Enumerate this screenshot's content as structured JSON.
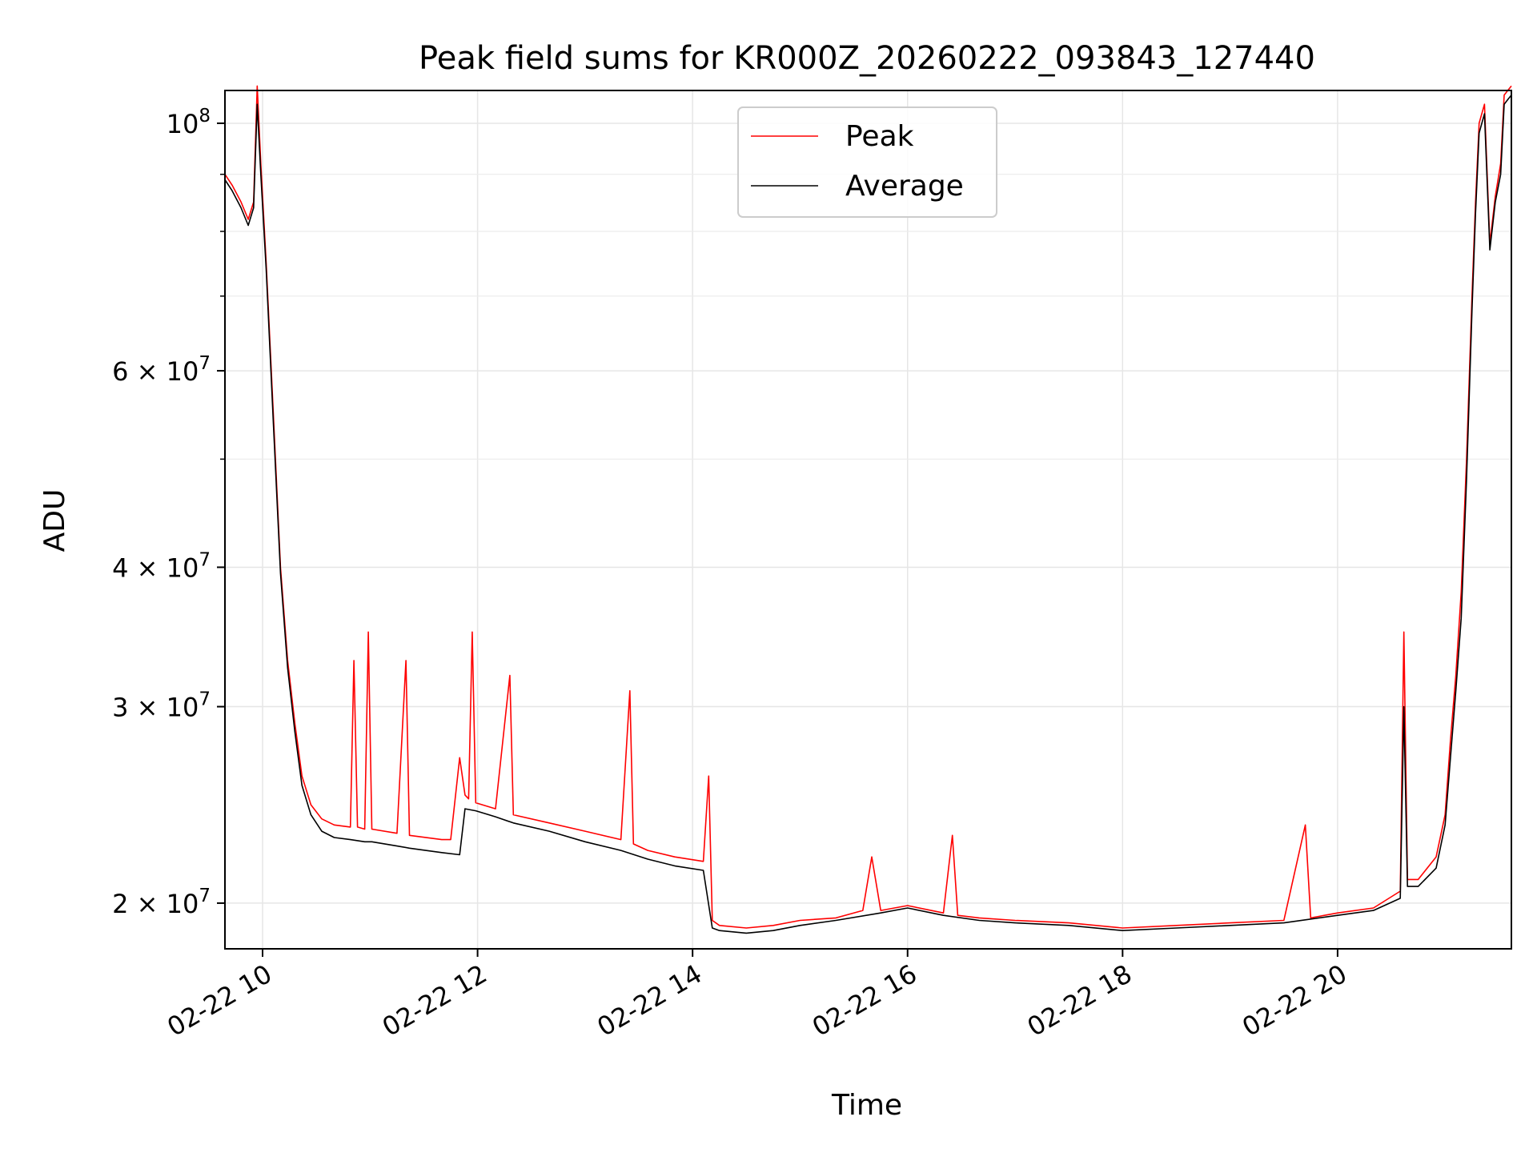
{
  "chart_data": {
    "type": "line",
    "title": "Peak field sums for KR000Z_20260222_093843_127440",
    "xlabel": "Time",
    "ylabel": "ADU",
    "yscale": "log",
    "xlim": [
      "2026-02-22 09:39",
      "2026-02-22 21:37"
    ],
    "ylim": [
      18200000,
      107000000
    ],
    "grid": true,
    "legend_position": "top-center",
    "x_ticks": [
      {
        "label": "02-22 10",
        "x": "2026-02-22 10:00"
      },
      {
        "label": "02-22 12",
        "x": "2026-02-22 12:00"
      },
      {
        "label": "02-22 14",
        "x": "2026-02-22 14:00"
      },
      {
        "label": "02-22 16",
        "x": "2026-02-22 16:00"
      },
      {
        "label": "02-22 18",
        "x": "2026-02-22 18:00"
      },
      {
        "label": "02-22 20",
        "x": "2026-02-22 20:00"
      }
    ],
    "y_ticks": [
      {
        "label": "2 × 10^7",
        "mantissa": "2 × 10",
        "exp": "7",
        "value": 20000000
      },
      {
        "label": "3 × 10^7",
        "mantissa": "3 × 10",
        "exp": "7",
        "value": 30000000
      },
      {
        "label": "4 × 10^7",
        "mantissa": "4 × 10",
        "exp": "7",
        "value": 40000000
      },
      {
        "label": "6 × 10^7",
        "mantissa": "6 × 10",
        "exp": "7",
        "value": 60000000
      },
      {
        "label": "10^8",
        "mantissa": "10",
        "exp": "8",
        "value": 100000000
      }
    ],
    "y_minor_ticks": [
      50000000,
      70000000,
      80000000,
      90000000
    ],
    "series": [
      {
        "name": "Peak",
        "color": "#ff0000",
        "x": [
          "2026-02-22 09:39",
          "2026-02-22 09:43",
          "2026-02-22 09:48",
          "2026-02-22 09:52",
          "2026-02-22 09:55",
          "2026-02-22 09:57",
          "2026-02-22 09:59",
          "2026-02-22 10:02",
          "2026-02-22 10:06",
          "2026-02-22 10:10",
          "2026-02-22 10:14",
          "2026-02-22 10:18",
          "2026-02-22 10:22",
          "2026-02-22 10:27",
          "2026-02-22 10:33",
          "2026-02-22 10:40",
          "2026-02-22 10:49",
          "2026-02-22 10:51",
          "2026-02-22 10:53",
          "2026-02-22 10:57",
          "2026-02-22 10:59",
          "2026-02-22 11:01",
          "2026-02-22 11:15",
          "2026-02-22 11:20",
          "2026-02-22 11:22",
          "2026-02-22 11:40",
          "2026-02-22 11:45",
          "2026-02-22 11:50",
          "2026-02-22 11:53",
          "2026-02-22 11:55",
          "2026-02-22 11:57",
          "2026-02-22 11:59",
          "2026-02-22 12:10",
          "2026-02-22 12:18",
          "2026-02-22 12:20",
          "2026-02-22 12:40",
          "2026-02-22 13:00",
          "2026-02-22 13:20",
          "2026-02-22 13:25",
          "2026-02-22 13:27",
          "2026-02-22 13:35",
          "2026-02-22 13:50",
          "2026-02-22 14:06",
          "2026-02-22 14:09",
          "2026-02-22 14:11",
          "2026-02-22 14:15",
          "2026-02-22 14:30",
          "2026-02-22 14:45",
          "2026-02-22 15:00",
          "2026-02-22 15:20",
          "2026-02-22 15:35",
          "2026-02-22 15:40",
          "2026-02-22 15:45",
          "2026-02-22 16:00",
          "2026-02-22 16:20",
          "2026-02-22 16:25",
          "2026-02-22 16:28",
          "2026-02-22 16:40",
          "2026-02-22 17:00",
          "2026-02-22 17:30",
          "2026-02-22 18:00",
          "2026-02-22 18:30",
          "2026-02-22 19:00",
          "2026-02-22 19:30",
          "2026-02-22 19:42",
          "2026-02-22 19:45",
          "2026-02-22 20:00",
          "2026-02-22 20:20",
          "2026-02-22 20:35",
          "2026-02-22 20:37",
          "2026-02-22 20:39",
          "2026-02-22 20:45",
          "2026-02-22 20:55",
          "2026-02-22 21:00",
          "2026-02-22 21:03",
          "2026-02-22 21:06",
          "2026-02-22 21:09",
          "2026-02-22 21:12",
          "2026-02-22 21:15",
          "2026-02-22 21:17",
          "2026-02-22 21:19",
          "2026-02-22 21:22",
          "2026-02-22 21:25",
          "2026-02-22 21:28",
          "2026-02-22 21:31",
          "2026-02-22 21:33",
          "2026-02-22 21:35",
          "2026-02-22 21:37"
        ],
        "values": [
          90000000,
          88000000,
          85000000,
          82000000,
          85000000,
          108000000,
          92000000,
          75000000,
          55000000,
          40000000,
          33000000,
          29000000,
          26000000,
          24500000,
          23800000,
          23500000,
          23400000,
          33000000,
          23400000,
          23300000,
          35000000,
          23300000,
          23100000,
          33000000,
          23000000,
          22800000,
          22800000,
          27000000,
          25000000,
          24800000,
          35000000,
          24600000,
          24300000,
          32000000,
          24000000,
          23600000,
          23200000,
          22800000,
          31000000,
          22600000,
          22300000,
          22000000,
          21800000,
          26000000,
          19300000,
          19100000,
          19000000,
          19100000,
          19300000,
          19400000,
          19700000,
          22000000,
          19700000,
          19900000,
          19600000,
          23000000,
          19500000,
          19400000,
          19300000,
          19200000,
          19000000,
          19100000,
          19200000,
          19300000,
          23500000,
          19400000,
          19600000,
          19800000,
          20500000,
          35000000,
          21000000,
          21000000,
          22000000,
          24000000,
          28000000,
          32000000,
          38000000,
          50000000,
          70000000,
          85000000,
          100000000,
          104000000,
          78000000,
          86000000,
          92000000,
          106000000,
          107000000,
          108000000
        ]
      },
      {
        "name": "Average",
        "color": "#000000",
        "x": [
          "2026-02-22 09:39",
          "2026-02-22 09:43",
          "2026-02-22 09:48",
          "2026-02-22 09:52",
          "2026-02-22 09:55",
          "2026-02-22 09:57",
          "2026-02-22 09:59",
          "2026-02-22 10:02",
          "2026-02-22 10:06",
          "2026-02-22 10:10",
          "2026-02-22 10:14",
          "2026-02-22 10:18",
          "2026-02-22 10:22",
          "2026-02-22 10:27",
          "2026-02-22 10:33",
          "2026-02-22 10:40",
          "2026-02-22 10:49",
          "2026-02-22 10:57",
          "2026-02-22 11:01",
          "2026-02-22 11:15",
          "2026-02-22 11:22",
          "2026-02-22 11:40",
          "2026-02-22 11:50",
          "2026-02-22 11:53",
          "2026-02-22 11:59",
          "2026-02-22 12:10",
          "2026-02-22 12:20",
          "2026-02-22 12:40",
          "2026-02-22 13:00",
          "2026-02-22 13:20",
          "2026-02-22 13:35",
          "2026-02-22 13:50",
          "2026-02-22 14:06",
          "2026-02-22 14:11",
          "2026-02-22 14:15",
          "2026-02-22 14:30",
          "2026-02-22 14:45",
          "2026-02-22 15:00",
          "2026-02-22 15:20",
          "2026-02-22 15:45",
          "2026-02-22 16:00",
          "2026-02-22 16:20",
          "2026-02-22 16:40",
          "2026-02-22 17:00",
          "2026-02-22 17:30",
          "2026-02-22 18:00",
          "2026-02-22 18:30",
          "2026-02-22 19:00",
          "2026-02-22 19:30",
          "2026-02-22 20:00",
          "2026-02-22 20:20",
          "2026-02-22 20:35",
          "2026-02-22 20:37",
          "2026-02-22 20:39",
          "2026-02-22 20:45",
          "2026-02-22 20:55",
          "2026-02-22 21:00",
          "2026-02-22 21:03",
          "2026-02-22 21:06",
          "2026-02-22 21:09",
          "2026-02-22 21:12",
          "2026-02-22 21:15",
          "2026-02-22 21:17",
          "2026-02-22 21:19",
          "2026-02-22 21:22",
          "2026-02-22 21:25",
          "2026-02-22 21:28",
          "2026-02-22 21:31",
          "2026-02-22 21:33",
          "2026-02-22 21:35",
          "2026-02-22 21:37"
        ],
        "values": [
          89000000,
          87000000,
          84000000,
          81000000,
          84000000,
          104000000,
          90000000,
          74000000,
          54000000,
          39500000,
          32500000,
          28500000,
          25500000,
          24000000,
          23200000,
          22900000,
          22800000,
          22700000,
          22700000,
          22500000,
          22400000,
          22200000,
          22100000,
          24300000,
          24200000,
          23900000,
          23600000,
          23200000,
          22700000,
          22300000,
          21900000,
          21600000,
          21400000,
          19000000,
          18900000,
          18800000,
          18900000,
          19100000,
          19300000,
          19600000,
          19800000,
          19500000,
          19300000,
          19200000,
          19100000,
          18900000,
          19000000,
          19100000,
          19200000,
          19500000,
          19700000,
          20200000,
          30000000,
          20700000,
          20700000,
          21500000,
          23500000,
          27000000,
          31000000,
          36000000,
          48000000,
          68000000,
          83000000,
          98000000,
          102000000,
          77000000,
          85000000,
          90000000,
          104000000,
          105000000,
          106000000
        ]
      }
    ]
  }
}
